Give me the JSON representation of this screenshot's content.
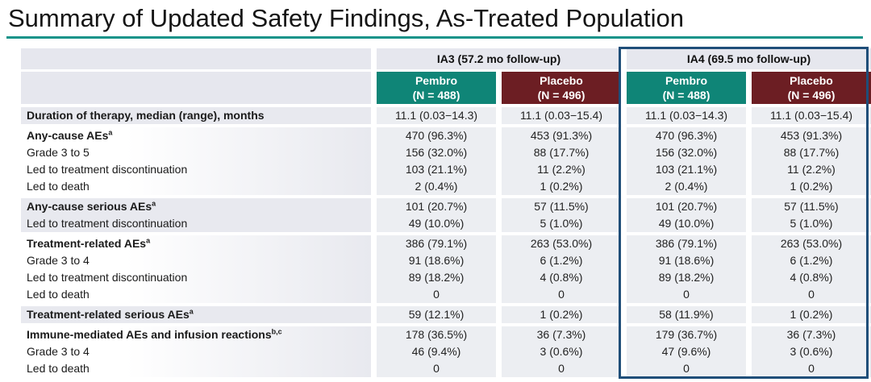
{
  "title": "Summary of Updated Safety Findings, As-Treated Population",
  "colors": {
    "accent_line": "#149389",
    "pembro_teal": "#0f8577",
    "placebo_maroon": "#6c1e23",
    "ia4_border": "#1f4e79",
    "band_gray": "#e8e9ef"
  },
  "table": {
    "column_groups": [
      {
        "label": "IA3 (57.2 mo follow-up)",
        "highlighted": false
      },
      {
        "label": "IA4 (69.5 mo follow-up)",
        "highlighted": true
      }
    ],
    "columns": [
      {
        "arm": "Pembro",
        "n": "(N = 488)",
        "color": "#0f8577"
      },
      {
        "arm": "Placebo",
        "n": "(N = 496)",
        "color": "#6c1e23"
      },
      {
        "arm": "Pembro",
        "n": "(N = 488)",
        "color": "#0f8577"
      },
      {
        "arm": "Placebo",
        "n": "(N = 496)",
        "color": "#6c1e23"
      }
    ],
    "row_groups": [
      {
        "band": "gray",
        "rows": [
          {
            "label": "Duration of therapy, median (range), months",
            "bold": true,
            "values": [
              "11.1 (0.03−14.3)",
              "11.1 (0.03−15.4)",
              "11.1 (0.03−14.3)",
              "11.1 (0.03−15.4)"
            ]
          }
        ]
      },
      {
        "band": "white",
        "rows": [
          {
            "label": "Any-cause AEs",
            "sup": "a",
            "bold": true,
            "values": [
              "470 (96.3%)",
              "453 (91.3%)",
              "470 (96.3%)",
              "453 (91.3%)"
            ]
          },
          {
            "label": "Grade 3 to 5",
            "indent": true,
            "values": [
              "156 (32.0%)",
              "88 (17.7%)",
              "156 (32.0%)",
              "88 (17.7%)"
            ]
          },
          {
            "label": "Led to treatment discontinuation",
            "indent": true,
            "values": [
              "103 (21.1%)",
              "11 (2.2%)",
              "103 (21.1%)",
              "11 (2.2%)"
            ]
          },
          {
            "label": "Led to death",
            "indent": true,
            "values": [
              "2 (0.4%)",
              "1 (0.2%)",
              "2 (0.4%)",
              "1 (0.2%)"
            ]
          }
        ]
      },
      {
        "band": "gray",
        "rows": [
          {
            "label": "Any-cause serious AEs",
            "sup": "a",
            "bold": true,
            "values": [
              "101 (20.7%)",
              "57 (11.5%)",
              "101 (20.7%)",
              "57 (11.5%)"
            ]
          },
          {
            "label": "Led to treatment discontinuation",
            "indent": true,
            "values": [
              "49 (10.0%)",
              "5 (1.0%)",
              "49 (10.0%)",
              "5 (1.0%)"
            ]
          }
        ]
      },
      {
        "band": "white",
        "rows": [
          {
            "label": "Treatment-related AEs",
            "sup": "a",
            "bold": true,
            "values": [
              "386 (79.1%)",
              "263 (53.0%)",
              "386 (79.1%)",
              "263 (53.0%)"
            ]
          },
          {
            "label": "Grade 3 to 4",
            "indent": true,
            "values": [
              "91 (18.6%)",
              "6 (1.2%)",
              "91 (18.6%)",
              "6 (1.2%)"
            ]
          },
          {
            "label": "Led to treatment discontinuation",
            "indent": true,
            "values": [
              "89 (18.2%)",
              "4 (0.8%)",
              "89 (18.2%)",
              "4 (0.8%)"
            ]
          },
          {
            "label": "Led to death",
            "indent": true,
            "values": [
              "0",
              "0",
              "0",
              "0"
            ]
          }
        ]
      },
      {
        "band": "gray",
        "rows": [
          {
            "label": "Treatment-related serious AEs",
            "sup": "a",
            "bold": true,
            "values": [
              "59 (12.1%)",
              "1 (0.2%)",
              "58 (11.9%)",
              "1 (0.2%)"
            ]
          }
        ]
      },
      {
        "band": "white",
        "rows": [
          {
            "label": "Immune-mediated AEs and infusion reactions",
            "sup": "b,c",
            "bold": true,
            "values": [
              "178 (36.5%)",
              "36 (7.3%)",
              "179 (36.7%)",
              "36 (7.3%)"
            ]
          },
          {
            "label": "Grade 3 to 4",
            "indent": true,
            "values": [
              "46 (9.4%)",
              "3 (0.6%)",
              "47 (9.6%)",
              "3 (0.6%)"
            ]
          },
          {
            "label": "Led to death",
            "indent": true,
            "values": [
              "0",
              "0",
              "0",
              "0"
            ]
          }
        ]
      }
    ]
  }
}
